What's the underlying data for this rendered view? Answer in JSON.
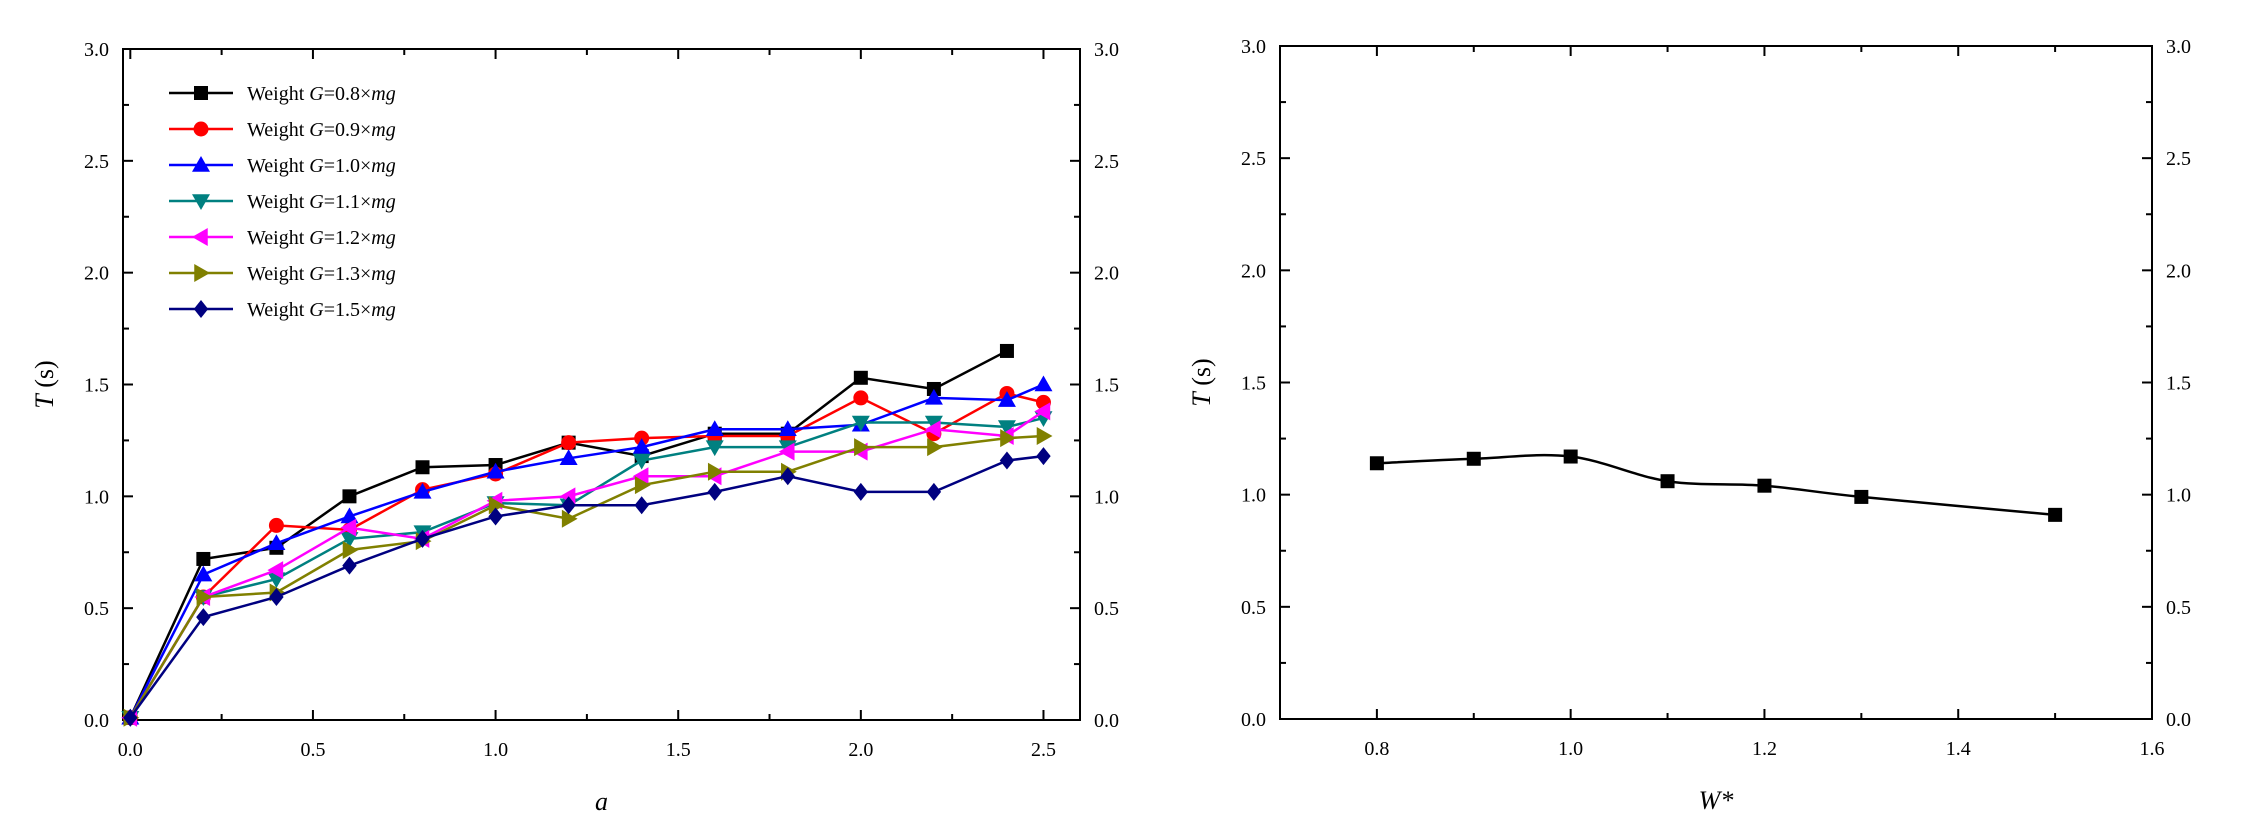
{
  "chart_data": [
    {
      "type": "line",
      "xlabel": "a",
      "ylabel": "T (s)",
      "ylabel_italic": "T",
      "ylabel_unit": " (s)",
      "xlim": [
        -0.02,
        2.6
      ],
      "ylim": [
        0,
        3.0
      ],
      "xticks": [
        "0.0",
        "0.5",
        "1.0",
        "1.5",
        "2.0",
        "2.5"
      ],
      "xtick_values": [
        0,
        0.5,
        1.0,
        1.5,
        2.0,
        2.5
      ],
      "yticks": [
        "0.0",
        "0.5",
        "1.0",
        "1.5",
        "2.0",
        "2.5",
        "3.0"
      ],
      "ytick_values": [
        0,
        0.5,
        1.0,
        1.5,
        2.0,
        2.5,
        3.0
      ],
      "right_axis_ticks": true,
      "grid": false,
      "legend_position": "top-left",
      "series": [
        {
          "name": "Weight G=0.8×mg",
          "legend": {
            "prefix": "Weight ",
            "g": "G",
            "mid": "=0.8×",
            "mg": "mg"
          },
          "color": "#000000",
          "marker": "square",
          "x": [
            0,
            0.2,
            0.4,
            0.6,
            0.8,
            1.0,
            1.2,
            1.4,
            1.6,
            1.8,
            2.0,
            2.2,
            2.4
          ],
          "y": [
            0.01,
            0.72,
            0.77,
            1.0,
            1.13,
            1.14,
            1.24,
            1.18,
            1.28,
            1.28,
            1.53,
            1.48,
            1.65
          ]
        },
        {
          "name": "Weight G=0.9×mg",
          "legend": {
            "prefix": "Weight ",
            "g": "G",
            "mid": "=0.9×",
            "mg": "mg"
          },
          "color": "#ff0000",
          "marker": "circle",
          "x": [
            0,
            0.2,
            0.4,
            0.6,
            0.8,
            1.0,
            1.2,
            1.4,
            1.6,
            1.8,
            2.0,
            2.2,
            2.4,
            2.5
          ],
          "y": [
            0.01,
            0.55,
            0.87,
            0.85,
            1.03,
            1.1,
            1.24,
            1.26,
            1.27,
            1.27,
            1.44,
            1.28,
            1.46,
            1.42
          ]
        },
        {
          "name": "Weight G=1.0×mg",
          "legend": {
            "prefix": "Weight ",
            "g": "G",
            "mid": "=1.0×",
            "mg": "mg"
          },
          "color": "#0000ff",
          "marker": "triangle-up",
          "x": [
            0,
            0.2,
            0.4,
            0.6,
            0.8,
            1.0,
            1.2,
            1.4,
            1.6,
            1.8,
            2.0,
            2.2,
            2.4,
            2.5
          ],
          "y": [
            0.01,
            0.65,
            0.79,
            0.91,
            1.02,
            1.11,
            1.17,
            1.22,
            1.3,
            1.3,
            1.32,
            1.44,
            1.43,
            1.5
          ]
        },
        {
          "name": "Weight G=1.1×mg",
          "legend": {
            "prefix": "Weight ",
            "g": "G",
            "mid": "=1.1×",
            "mg": "mg"
          },
          "color": "#008080",
          "marker": "triangle-down",
          "x": [
            0,
            0.2,
            0.4,
            0.6,
            0.8,
            1.0,
            1.2,
            1.4,
            1.6,
            1.8,
            2.0,
            2.2,
            2.4,
            2.5
          ],
          "y": [
            0.01,
            0.55,
            0.63,
            0.81,
            0.84,
            0.97,
            0.96,
            1.16,
            1.22,
            1.22,
            1.33,
            1.33,
            1.31,
            1.35
          ]
        },
        {
          "name": "Weight G=1.2×mg",
          "legend": {
            "prefix": "Weight ",
            "g": "G",
            "mid": "=1.2×",
            "mg": "mg"
          },
          "color": "#ff00ff",
          "marker": "triangle-left",
          "x": [
            0,
            0.2,
            0.4,
            0.6,
            0.8,
            1.0,
            1.2,
            1.4,
            1.6,
            1.8,
            2.0,
            2.2,
            2.4,
            2.5
          ],
          "y": [
            0.01,
            0.55,
            0.67,
            0.86,
            0.81,
            0.98,
            1.0,
            1.09,
            1.09,
            1.2,
            1.2,
            1.3,
            1.27,
            1.38
          ]
        },
        {
          "name": "Weight G=1.3×mg",
          "legend": {
            "prefix": "Weight ",
            "g": "G",
            "mid": "=1.3×",
            "mg": "mg"
          },
          "color": "#808000",
          "marker": "triangle-right",
          "x": [
            0,
            0.2,
            0.4,
            0.6,
            0.8,
            1.0,
            1.2,
            1.4,
            1.6,
            1.8,
            2.0,
            2.2,
            2.4,
            2.5
          ],
          "y": [
            0.01,
            0.55,
            0.57,
            0.76,
            0.8,
            0.96,
            0.9,
            1.05,
            1.11,
            1.11,
            1.22,
            1.22,
            1.26,
            1.27
          ]
        },
        {
          "name": "Weight G=1.5×mg",
          "legend": {
            "prefix": "Weight ",
            "g": "G",
            "mid": "=1.5×",
            "mg": "mg"
          },
          "color": "#000080",
          "marker": "diamond",
          "x": [
            0,
            0.2,
            0.4,
            0.6,
            0.8,
            1.0,
            1.2,
            1.4,
            1.6,
            1.8,
            2.0,
            2.2,
            2.4,
            2.5
          ],
          "y": [
            0.01,
            0.46,
            0.55,
            0.69,
            0.81,
            0.91,
            0.96,
            0.96,
            1.02,
            1.09,
            1.02,
            1.02,
            1.16,
            1.18
          ]
        }
      ]
    },
    {
      "type": "line",
      "xlabel": "W*",
      "ylabel": "T (s)",
      "ylabel_italic": "T",
      "ylabel_unit": " (s)",
      "xlim": [
        0.7,
        1.6
      ],
      "ylim": [
        0,
        3.0
      ],
      "xticks": [
        "0.8",
        "1.0",
        "1.2",
        "1.4",
        "1.6"
      ],
      "xtick_values": [
        0.8,
        1.0,
        1.2,
        1.4,
        1.6
      ],
      "yticks": [
        "0.0",
        "0.5",
        "1.0",
        "1.5",
        "2.0",
        "2.5",
        "3.0"
      ],
      "ytick_values": [
        0,
        0.5,
        1.0,
        1.5,
        2.0,
        2.5,
        3.0
      ],
      "right_axis_ticks": true,
      "grid": false,
      "smooth": true,
      "series": [
        {
          "color": "#000000",
          "marker": "square",
          "x": [
            0.8,
            0.9,
            1.0,
            1.1,
            1.2,
            1.3,
            1.5
          ],
          "y": [
            1.14,
            1.16,
            1.17,
            1.06,
            1.04,
            0.99,
            0.91
          ]
        }
      ]
    }
  ]
}
